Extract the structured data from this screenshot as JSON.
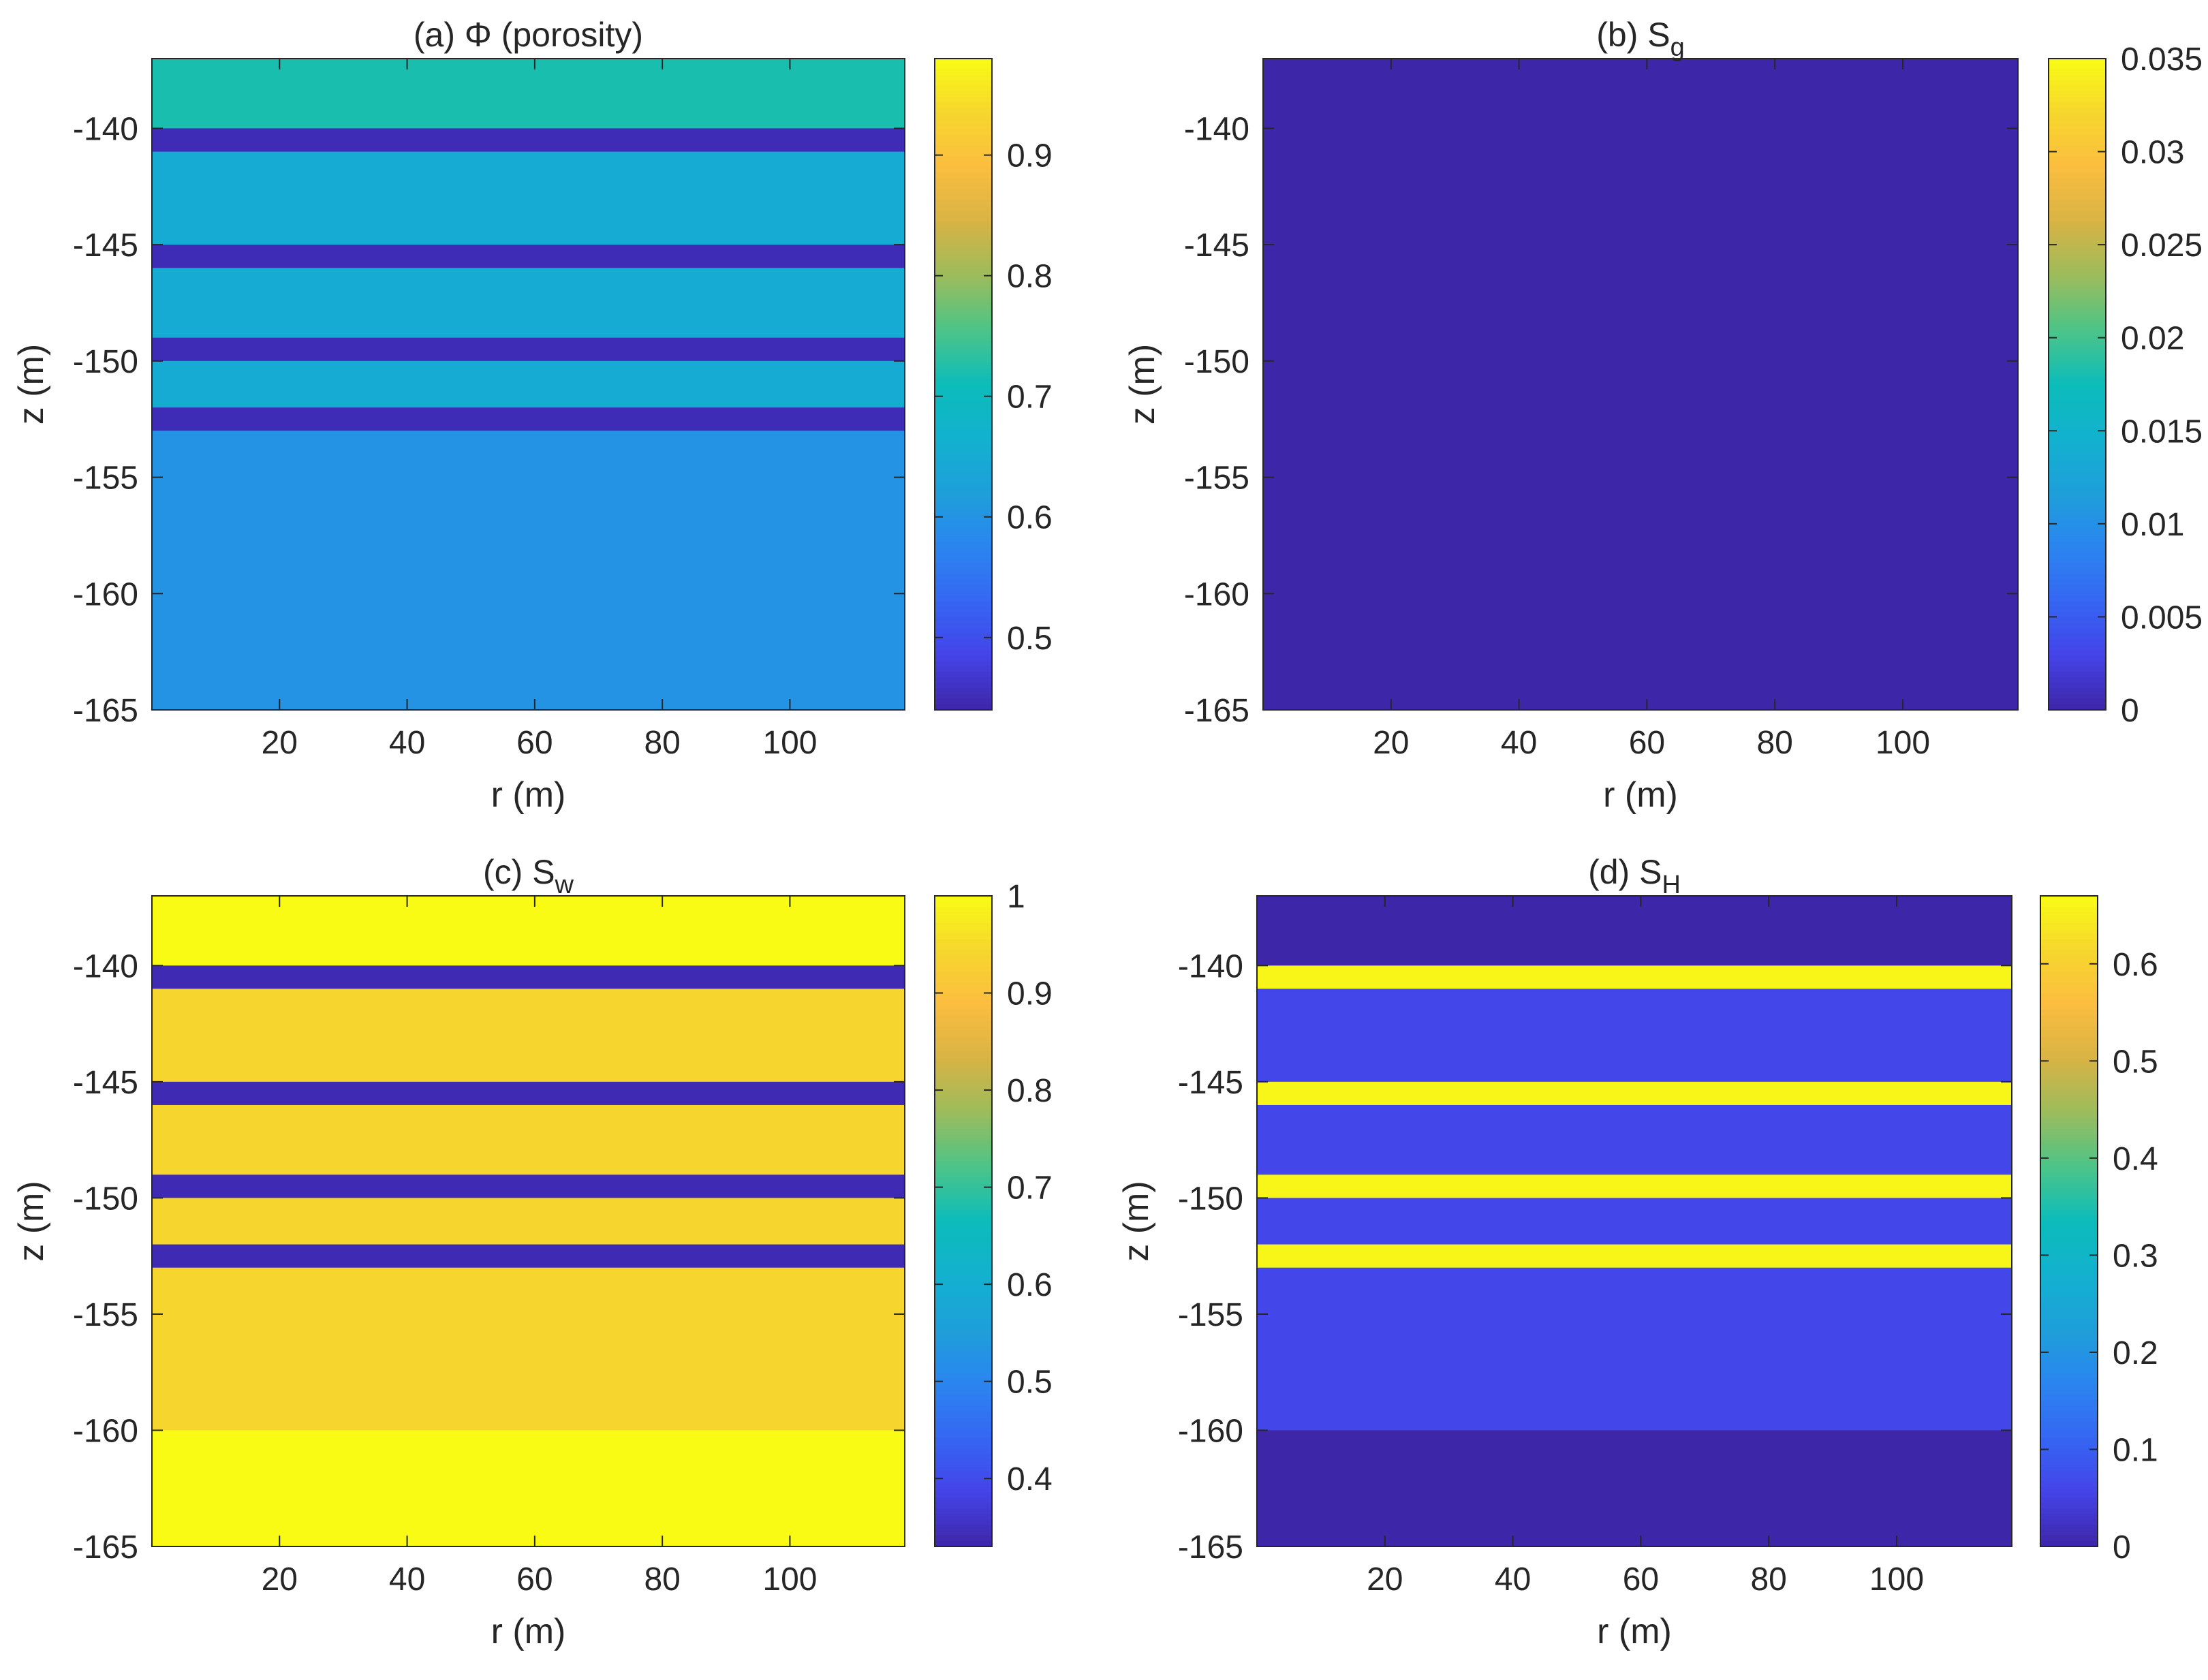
{
  "chart_data": [
    {
      "type": "heatmap",
      "title": "(a) Φ (porosity)",
      "title_main": "(a) Φ (porosity)",
      "title_sub": "",
      "xlabel": "r (m)",
      "ylabel": "z (m)",
      "xlim": [
        0,
        118
      ],
      "ylim": [
        -165,
        -137
      ],
      "xticks": [
        20,
        40,
        60,
        80,
        100
      ],
      "yticks": [
        -140,
        -145,
        -150,
        -155,
        -160,
        -165
      ],
      "colorbar": {
        "min": 0.44,
        "max": 0.98,
        "ticks": [
          0.5,
          0.6,
          0.7,
          0.8,
          0.9
        ],
        "labels": [
          "0.5",
          "0.6",
          "0.7",
          "0.8",
          "0.9"
        ]
      },
      "layers": [
        {
          "z_top": -137,
          "z_bottom": -140,
          "value": 0.72
        },
        {
          "z_top": -140,
          "z_bottom": -141,
          "value": 0.45
        },
        {
          "z_top": -141,
          "z_bottom": -145,
          "value": 0.65
        },
        {
          "z_top": -145,
          "z_bottom": -146,
          "value": 0.45
        },
        {
          "z_top": -146,
          "z_bottom": -149,
          "value": 0.65
        },
        {
          "z_top": -149,
          "z_bottom": -150,
          "value": 0.45
        },
        {
          "z_top": -150,
          "z_bottom": -152,
          "value": 0.65
        },
        {
          "z_top": -152,
          "z_bottom": -153,
          "value": 0.45
        },
        {
          "z_top": -153,
          "z_bottom": -165,
          "value": 0.6
        }
      ]
    },
    {
      "type": "heatmap",
      "title": "(b) Sg",
      "title_main": "(b) S",
      "title_sub": "g",
      "xlabel": "r (m)",
      "ylabel": "z (m)",
      "xlim": [
        0,
        118
      ],
      "ylim": [
        -165,
        -137
      ],
      "xticks": [
        20,
        40,
        60,
        80,
        100
      ],
      "yticks": [
        -140,
        -145,
        -150,
        -155,
        -160,
        -165
      ],
      "colorbar": {
        "min": 0,
        "max": 0.035,
        "ticks": [
          0,
          0.005,
          0.01,
          0.015,
          0.02,
          0.025,
          0.03,
          0.035
        ],
        "labels": [
          "0",
          "0.005",
          "0.01",
          "0.015",
          "0.02",
          "0.025",
          "0.03",
          "0.035"
        ]
      },
      "layers": [
        {
          "z_top": -137,
          "z_bottom": -165,
          "value": 0
        }
      ]
    },
    {
      "type": "heatmap",
      "title": "(c) Sw",
      "title_main": "(c) S",
      "title_sub": "w",
      "xlabel": "r (m)",
      "ylabel": "z (m)",
      "xlim": [
        0,
        118
      ],
      "ylim": [
        -165,
        -137
      ],
      "xticks": [
        20,
        40,
        60,
        80,
        100
      ],
      "yticks": [
        -140,
        -145,
        -150,
        -155,
        -160,
        -165
      ],
      "colorbar": {
        "min": 0.33,
        "max": 1.0,
        "ticks": [
          0.4,
          0.5,
          0.6,
          0.7,
          0.8,
          0.9,
          1.0
        ],
        "labels": [
          "0.4",
          "0.5",
          "0.6",
          "0.7",
          "0.8",
          "0.9",
          "1"
        ]
      },
      "layers": [
        {
          "z_top": -137,
          "z_bottom": -140,
          "value": 1.0
        },
        {
          "z_top": -140,
          "z_bottom": -141,
          "value": 0.34
        },
        {
          "z_top": -141,
          "z_bottom": -145,
          "value": 0.94
        },
        {
          "z_top": -145,
          "z_bottom": -146,
          "value": 0.34
        },
        {
          "z_top": -146,
          "z_bottom": -149,
          "value": 0.94
        },
        {
          "z_top": -149,
          "z_bottom": -150,
          "value": 0.34
        },
        {
          "z_top": -150,
          "z_bottom": -152,
          "value": 0.94
        },
        {
          "z_top": -152,
          "z_bottom": -153,
          "value": 0.34
        },
        {
          "z_top": -153,
          "z_bottom": -160,
          "value": 0.94
        },
        {
          "z_top": -160,
          "z_bottom": -165,
          "value": 1.0
        }
      ]
    },
    {
      "type": "heatmap",
      "title": "(d) SH",
      "title_main": "(d) S",
      "title_sub": "H",
      "xlabel": "r (m)",
      "ylabel": "z (m)",
      "xlim": [
        0,
        118
      ],
      "ylim": [
        -165,
        -137
      ],
      "xticks": [
        20,
        40,
        60,
        80,
        100
      ],
      "yticks": [
        -140,
        -145,
        -150,
        -155,
        -160,
        -165
      ],
      "colorbar": {
        "min": 0,
        "max": 0.67,
        "ticks": [
          0,
          0.1,
          0.2,
          0.3,
          0.4,
          0.5,
          0.6
        ],
        "labels": [
          "0",
          "0.1",
          "0.2",
          "0.3",
          "0.4",
          "0.5",
          "0.6"
        ]
      },
      "layers": [
        {
          "z_top": -137,
          "z_bottom": -140,
          "value": 0.0
        },
        {
          "z_top": -140,
          "z_bottom": -141,
          "value": 0.66
        },
        {
          "z_top": -141,
          "z_bottom": -145,
          "value": 0.06
        },
        {
          "z_top": -145,
          "z_bottom": -146,
          "value": 0.66
        },
        {
          "z_top": -146,
          "z_bottom": -149,
          "value": 0.06
        },
        {
          "z_top": -149,
          "z_bottom": -150,
          "value": 0.66
        },
        {
          "z_top": -150,
          "z_bottom": -152,
          "value": 0.06
        },
        {
          "z_top": -152,
          "z_bottom": -153,
          "value": 0.66
        },
        {
          "z_top": -153,
          "z_bottom": -160,
          "value": 0.06
        },
        {
          "z_top": -160,
          "z_bottom": -165,
          "value": 0.0
        }
      ]
    }
  ],
  "colormap": [
    "#3e26a8",
    "#4443e8",
    "#3566f3",
    "#2b85f0",
    "#1e9fd9",
    "#12b1cf",
    "#0cbcba",
    "#4cc488",
    "#9cbc5c",
    "#d8b344",
    "#fbbd3f",
    "#f6d72d",
    "#f9fb15"
  ]
}
